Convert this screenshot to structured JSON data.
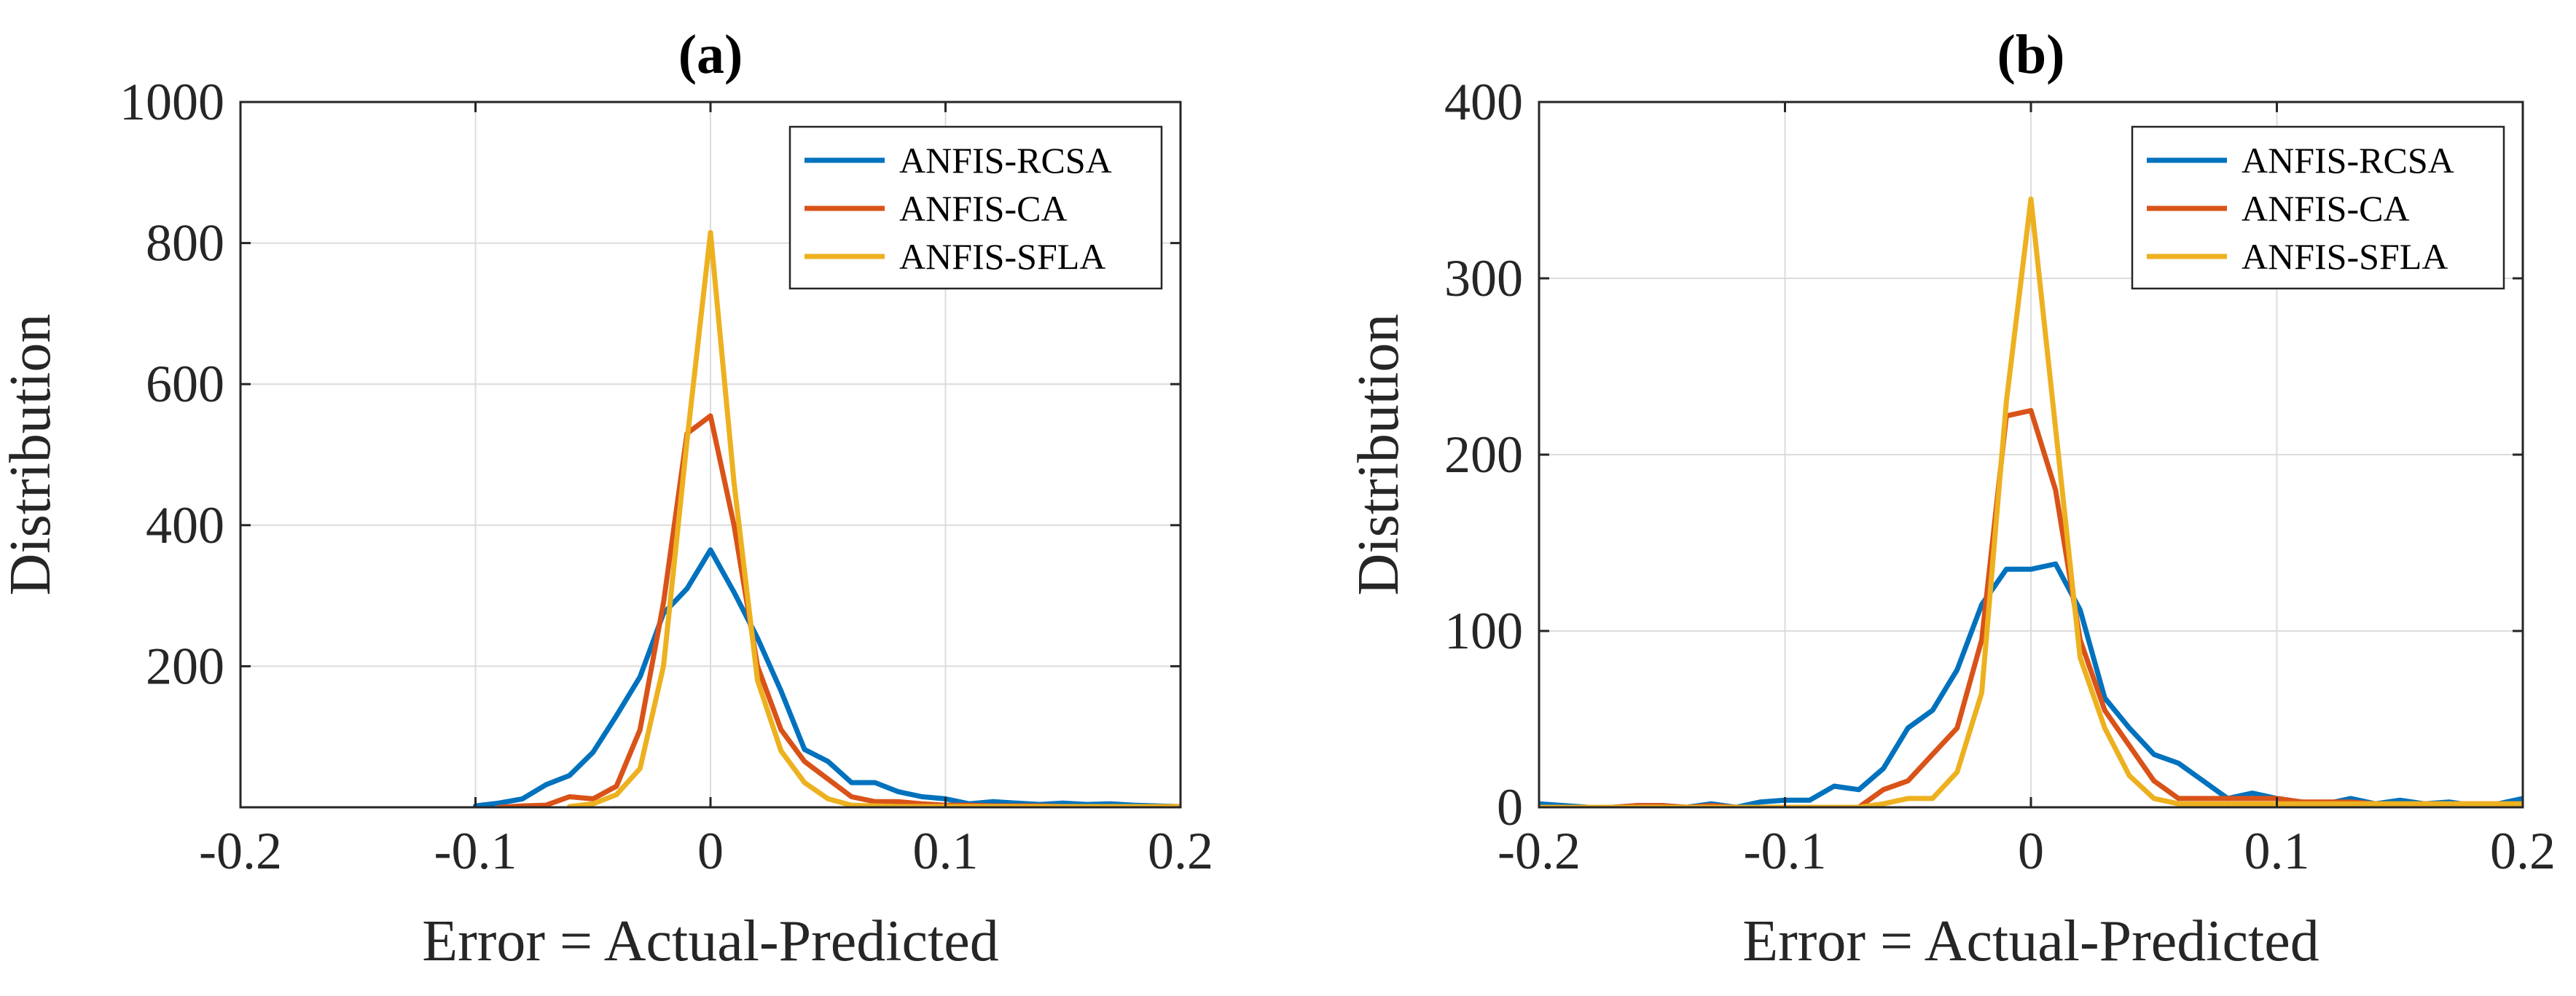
{
  "chart_data": [
    {
      "type": "line",
      "title": "(a)",
      "xlabel": "Error = Actual-Predicted",
      "ylabel": "Distribution",
      "xlim": [
        -0.2,
        0.2
      ],
      "ylim": [
        0,
        1000
      ],
      "xticks": [
        -0.2,
        -0.1,
        0,
        0.1,
        0.2
      ],
      "xtick_labels": [
        "-0.2",
        "-0.1",
        "0",
        "0.1",
        "0.2"
      ],
      "yticks": [
        200,
        400,
        600,
        800,
        1000
      ],
      "ytick_labels": [
        "200",
        "400",
        "600",
        "800",
        "1000"
      ],
      "grid": true,
      "legend_position": "top-right",
      "series": [
        {
          "name": "ANFIS-RCSA",
          "color": "#0072BD",
          "x": [
            -0.1,
            -0.09,
            -0.08,
            -0.07,
            -0.06,
            -0.05,
            -0.04,
            -0.03,
            -0.02,
            -0.01,
            0,
            0.01,
            0.02,
            0.03,
            0.04,
            0.05,
            0.06,
            0.07,
            0.08,
            0.09,
            0.1,
            0.11,
            0.12,
            0.13,
            0.14,
            0.15,
            0.16,
            0.17,
            0.18,
            0.19,
            0.2
          ],
          "y": [
            2,
            6,
            12,
            32,
            45,
            78,
            130,
            185,
            275,
            310,
            365,
            305,
            240,
            165,
            82,
            65,
            35,
            35,
            22,
            15,
            12,
            5,
            8,
            6,
            4,
            6,
            4,
            5,
            3,
            2,
            1
          ]
        },
        {
          "name": "ANFIS-CA",
          "color": "#D95319",
          "x": [
            -0.09,
            -0.08,
            -0.07,
            -0.06,
            -0.05,
            -0.04,
            -0.03,
            -0.02,
            -0.01,
            0,
            0.01,
            0.02,
            0.03,
            0.04,
            0.05,
            0.06,
            0.07,
            0.08,
            0.09,
            0.1,
            0.11,
            0.12,
            0.13,
            0.14,
            0.15,
            0.16,
            0.17,
            0.18,
            0.19
          ],
          "y": [
            0,
            2,
            3,
            15,
            12,
            30,
            110,
            290,
            530,
            555,
            400,
            200,
            110,
            65,
            40,
            15,
            8,
            8,
            5,
            3,
            3,
            2,
            2,
            2,
            1,
            1,
            1,
            1,
            1
          ]
        },
        {
          "name": "ANFIS-SFLA",
          "color": "#EDB120",
          "x": [
            -0.06,
            -0.05,
            -0.04,
            -0.03,
            -0.02,
            -0.01,
            0,
            0.01,
            0.02,
            0.03,
            0.04,
            0.05,
            0.06,
            0.07,
            0.08,
            0.09,
            0.1,
            0.11,
            0.12,
            0.13,
            0.14,
            0.15,
            0.16,
            0.17,
            0.18,
            0.19,
            0.2
          ],
          "y": [
            1,
            5,
            18,
            55,
            200,
            520,
            815,
            460,
            180,
            80,
            35,
            12,
            3,
            2,
            1,
            1,
            1,
            1,
            1,
            1,
            1,
            1,
            1,
            1,
            1,
            1,
            1
          ]
        }
      ]
    },
    {
      "type": "line",
      "title": "(b)",
      "xlabel": "Error = Actual-Predicted",
      "ylabel": "Distribution",
      "xlim": [
        -0.2,
        0.2
      ],
      "ylim": [
        0,
        400
      ],
      "xticks": [
        -0.2,
        -0.1,
        0,
        0.1,
        0.2
      ],
      "xtick_labels": [
        "-0.2",
        "-0.1",
        "0",
        "0.1",
        "0.2"
      ],
      "yticks": [
        0,
        100,
        200,
        300,
        400
      ],
      "ytick_labels": [
        "0",
        "100",
        "200",
        "300",
        "400"
      ],
      "grid": true,
      "legend_position": "top-right",
      "series": [
        {
          "name": "ANFIS-RCSA",
          "color": "#0072BD",
          "x": [
            -0.2,
            -0.19,
            -0.18,
            -0.17,
            -0.16,
            -0.15,
            -0.14,
            -0.13,
            -0.12,
            -0.11,
            -0.1,
            -0.09,
            -0.08,
            -0.07,
            -0.06,
            -0.05,
            -0.04,
            -0.03,
            -0.02,
            -0.01,
            0,
            0.01,
            0.02,
            0.03,
            0.04,
            0.05,
            0.06,
            0.07,
            0.08,
            0.09,
            0.1,
            0.11,
            0.12,
            0.13,
            0.14,
            0.15,
            0.16,
            0.17,
            0.18,
            0.19,
            0.2
          ],
          "y": [
            2,
            1,
            0,
            0,
            1,
            1,
            0,
            2,
            0,
            3,
            4,
            4,
            12,
            10,
            22,
            45,
            55,
            78,
            115,
            135,
            135,
            138,
            112,
            62,
            45,
            30,
            25,
            15,
            5,
            8,
            5,
            3,
            2,
            5,
            2,
            4,
            2,
            3,
            1,
            2,
            5
          ]
        },
        {
          "name": "ANFIS-CA",
          "color": "#D95319",
          "x": [
            -0.2,
            -0.19,
            -0.18,
            -0.17,
            -0.16,
            -0.15,
            -0.14,
            -0.13,
            -0.12,
            -0.11,
            -0.1,
            -0.09,
            -0.08,
            -0.07,
            -0.06,
            -0.05,
            -0.04,
            -0.03,
            -0.02,
            -0.01,
            0,
            0.01,
            0.02,
            0.03,
            0.04,
            0.05,
            0.06,
            0.07,
            0.08,
            0.09,
            0.1,
            0.11,
            0.12,
            0.13,
            0.14,
            0.15,
            0.16,
            0.17,
            0.18,
            0.19,
            0.2
          ],
          "y": [
            0,
            0,
            0,
            0,
            1,
            1,
            0,
            1,
            0,
            0,
            0,
            0,
            0,
            0,
            10,
            15,
            30,
            45,
            95,
            222,
            225,
            180,
            95,
            55,
            35,
            15,
            5,
            5,
            5,
            5,
            5,
            3,
            3,
            3,
            2,
            2,
            2,
            2,
            2,
            2,
            2
          ]
        },
        {
          "name": "ANFIS-SFLA",
          "color": "#EDB120",
          "x": [
            -0.2,
            -0.19,
            -0.18,
            -0.17,
            -0.16,
            -0.15,
            -0.14,
            -0.13,
            -0.12,
            -0.11,
            -0.1,
            -0.09,
            -0.08,
            -0.07,
            -0.06,
            -0.05,
            -0.04,
            -0.03,
            -0.02,
            -0.01,
            0,
            0.01,
            0.02,
            0.03,
            0.04,
            0.05,
            0.06,
            0.07,
            0.08,
            0.09,
            0.1,
            0.11,
            0.12,
            0.13,
            0.14,
            0.15,
            0.16,
            0.17,
            0.18,
            0.19,
            0.2
          ],
          "y": [
            0,
            0,
            0,
            0,
            0,
            0,
            0,
            0,
            0,
            0,
            0,
            0,
            0,
            0,
            2,
            5,
            5,
            20,
            65,
            230,
            345,
            215,
            85,
            45,
            18,
            5,
            2,
            2,
            2,
            2,
            2,
            2,
            2,
            2,
            2,
            2,
            2,
            2,
            2,
            2,
            2
          ]
        }
      ]
    }
  ]
}
